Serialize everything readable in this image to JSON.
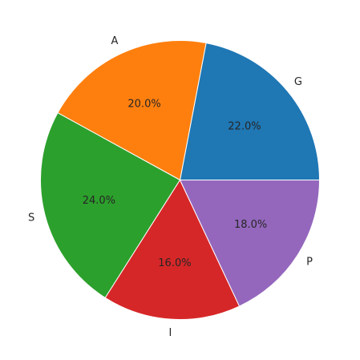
{
  "chart_data": {
    "type": "pie",
    "categories": [
      "G",
      "A",
      "S",
      "I",
      "P"
    ],
    "values": [
      22,
      20,
      24,
      16,
      18
    ],
    "value_labels": [
      "22.0%",
      "20.0%",
      "24.0%",
      "16.0%",
      "18.0%"
    ],
    "colors": [
      "#1f77b4",
      "#ff7f0e",
      "#2ca02c",
      "#d62728",
      "#9467bd"
    ]
  }
}
